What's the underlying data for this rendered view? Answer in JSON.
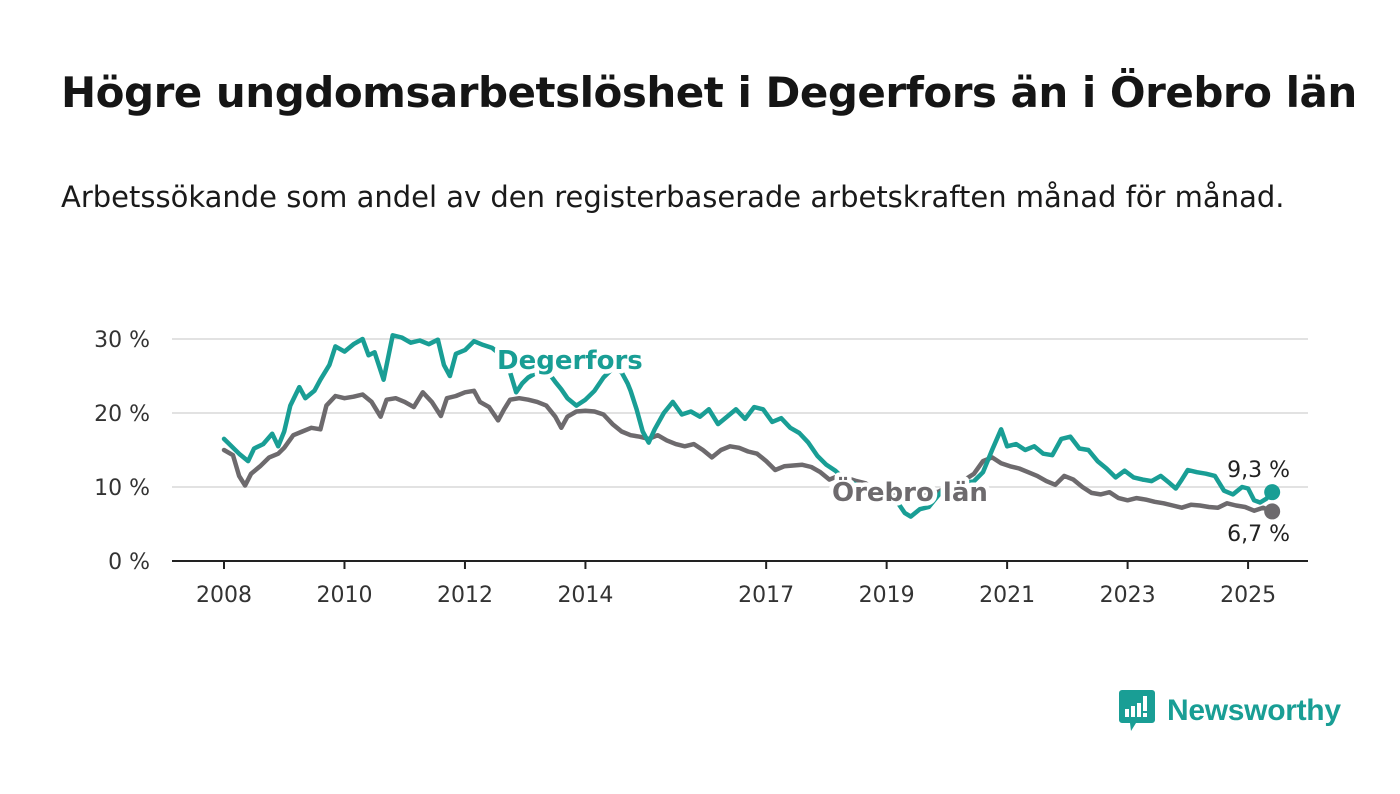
{
  "header": {
    "title": "Högre ungdomsarbetslöshet i Degerfors än i Örebro län",
    "subtitle": "Arbetssökande som andel av den registerbaserade arbetskraften månad för månad."
  },
  "logo": {
    "name": "Newsworthy",
    "color": "#199e95",
    "icon": "bar-chart-speech-bubble-icon"
  },
  "chart_data": {
    "type": "line",
    "title": "Högre ungdomsarbetslöshet i Degerfors än i Örebro län",
    "subtitle": "Arbetssökande som andel av den registerbaserade arbetskraften månad för månad.",
    "xlabel": "",
    "ylabel": "",
    "ylim": [
      0,
      30
    ],
    "xlim": [
      2007.6,
      2025.8
    ],
    "y_ticks": [
      {
        "value": 0,
        "label": "0 %"
      },
      {
        "value": 10,
        "label": "10 %"
      },
      {
        "value": 20,
        "label": "20 %"
      },
      {
        "value": 30,
        "label": "30 %"
      }
    ],
    "x_ticks": [
      {
        "value": 2008,
        "label": "2008"
      },
      {
        "value": 2010,
        "label": "2010"
      },
      {
        "value": 2012,
        "label": "2012"
      },
      {
        "value": 2014,
        "label": "2014"
      },
      {
        "value": 2017,
        "label": "2017"
      },
      {
        "value": 2019,
        "label": "2019"
      },
      {
        "value": 2021,
        "label": "2021"
      },
      {
        "value": 2023,
        "label": "2023"
      },
      {
        "value": 2025,
        "label": "2025"
      }
    ],
    "grid": true,
    "legend": "direct labels on lines",
    "series": [
      {
        "name": "Degerfors",
        "color": "#199e95",
        "end_label": "9,3 %",
        "points": [
          [
            2008.0,
            16.5
          ],
          [
            2008.25,
            14.5
          ],
          [
            2008.4,
            13.5
          ],
          [
            2008.5,
            15.2
          ],
          [
            2008.65,
            15.8
          ],
          [
            2008.8,
            17.2
          ],
          [
            2008.9,
            15.5
          ],
          [
            2009.0,
            17.5
          ],
          [
            2009.1,
            21.0
          ],
          [
            2009.25,
            23.5
          ],
          [
            2009.35,
            22.0
          ],
          [
            2009.5,
            23.0
          ],
          [
            2009.6,
            24.5
          ],
          [
            2009.75,
            26.5
          ],
          [
            2009.85,
            29.0
          ],
          [
            2010.0,
            28.3
          ],
          [
            2010.15,
            29.3
          ],
          [
            2010.3,
            30.0
          ],
          [
            2010.4,
            27.8
          ],
          [
            2010.5,
            28.2
          ],
          [
            2010.65,
            24.5
          ],
          [
            2010.8,
            30.5
          ],
          [
            2010.95,
            30.2
          ],
          [
            2011.1,
            29.5
          ],
          [
            2011.25,
            29.8
          ],
          [
            2011.4,
            29.3
          ],
          [
            2011.55,
            29.9
          ],
          [
            2011.65,
            26.5
          ],
          [
            2011.75,
            25.0
          ],
          [
            2011.85,
            28.0
          ],
          [
            2012.0,
            28.5
          ],
          [
            2012.15,
            29.7
          ],
          [
            2012.3,
            29.2
          ],
          [
            2012.45,
            28.8
          ],
          [
            2012.6,
            27.8
          ],
          [
            2012.75,
            25.5
          ],
          [
            2012.85,
            22.8
          ],
          [
            2012.95,
            24.0
          ],
          [
            2013.05,
            24.8
          ],
          [
            2013.2,
            25.5
          ],
          [
            2013.3,
            26.0
          ],
          [
            2013.4,
            25.3
          ],
          [
            2013.5,
            24.2
          ],
          [
            2013.6,
            23.2
          ],
          [
            2013.7,
            22.0
          ],
          [
            2013.85,
            21.0
          ],
          [
            2014.0,
            21.8
          ],
          [
            2014.15,
            23.0
          ],
          [
            2014.3,
            24.8
          ],
          [
            2014.45,
            26.0
          ],
          [
            2014.6,
            25.5
          ],
          [
            2014.7,
            24.0
          ],
          [
            2014.75,
            23.0
          ],
          [
            2014.85,
            20.5
          ],
          [
            2014.95,
            17.5
          ],
          [
            2015.05,
            16.0
          ],
          [
            2015.15,
            17.8
          ],
          [
            2015.3,
            20.0
          ],
          [
            2015.45,
            21.5
          ],
          [
            2015.6,
            19.8
          ],
          [
            2015.75,
            20.2
          ],
          [
            2015.9,
            19.5
          ],
          [
            2016.05,
            20.5
          ],
          [
            2016.2,
            18.5
          ],
          [
            2016.35,
            19.5
          ],
          [
            2016.5,
            20.5
          ],
          [
            2016.65,
            19.2
          ],
          [
            2016.8,
            20.8
          ],
          [
            2016.95,
            20.5
          ],
          [
            2017.1,
            18.8
          ],
          [
            2017.25,
            19.3
          ],
          [
            2017.4,
            18.0
          ],
          [
            2017.55,
            17.3
          ],
          [
            2017.7,
            16.0
          ],
          [
            2017.85,
            14.2
          ],
          [
            2018.0,
            13.0
          ],
          [
            2018.15,
            12.2
          ],
          [
            2018.3,
            11.0
          ],
          [
            2018.45,
            10.5
          ],
          [
            2018.6,
            10.0
          ],
          [
            2018.75,
            9.4
          ],
          [
            2018.9,
            9.0
          ],
          [
            2019.0,
            9.4
          ],
          [
            2019.15,
            8.3
          ],
          [
            2019.3,
            6.5
          ],
          [
            2019.4,
            6.0
          ],
          [
            2019.55,
            7.0
          ],
          [
            2019.7,
            7.3
          ],
          [
            2019.85,
            8.8
          ],
          [
            2020.0,
            10.2
          ],
          [
            2020.15,
            9.6
          ],
          [
            2020.3,
            10.5
          ],
          [
            2020.45,
            10.8
          ],
          [
            2020.6,
            12.0
          ],
          [
            2020.75,
            15.0
          ],
          [
            2020.9,
            17.8
          ],
          [
            2021.0,
            15.5
          ],
          [
            2021.15,
            15.8
          ],
          [
            2021.3,
            15.0
          ],
          [
            2021.45,
            15.5
          ],
          [
            2021.6,
            14.5
          ],
          [
            2021.75,
            14.3
          ],
          [
            2021.9,
            16.5
          ],
          [
            2022.05,
            16.8
          ],
          [
            2022.2,
            15.2
          ],
          [
            2022.35,
            15.0
          ],
          [
            2022.5,
            13.5
          ],
          [
            2022.65,
            12.5
          ],
          [
            2022.8,
            11.3
          ],
          [
            2022.95,
            12.2
          ],
          [
            2023.1,
            11.3
          ],
          [
            2023.25,
            11.0
          ],
          [
            2023.4,
            10.8
          ],
          [
            2023.55,
            11.5
          ],
          [
            2023.7,
            10.5
          ],
          [
            2023.8,
            9.8
          ],
          [
            2023.9,
            11.0
          ],
          [
            2024.0,
            12.3
          ],
          [
            2024.15,
            12.0
          ],
          [
            2024.3,
            11.8
          ],
          [
            2024.45,
            11.5
          ],
          [
            2024.6,
            9.5
          ],
          [
            2024.75,
            9.0
          ],
          [
            2024.9,
            10.0
          ],
          [
            2025.0,
            9.8
          ],
          [
            2025.1,
            8.2
          ],
          [
            2025.2,
            7.9
          ],
          [
            2025.3,
            8.4
          ],
          [
            2025.4,
            9.3
          ]
        ]
      },
      {
        "name": "Örebro län",
        "color": "#6d6a6d",
        "end_label": "6,7 %",
        "points": [
          [
            2008.0,
            15.0
          ],
          [
            2008.15,
            14.3
          ],
          [
            2008.25,
            11.5
          ],
          [
            2008.35,
            10.2
          ],
          [
            2008.45,
            11.8
          ],
          [
            2008.6,
            12.8
          ],
          [
            2008.75,
            14.0
          ],
          [
            2008.9,
            14.5
          ],
          [
            2009.0,
            15.3
          ],
          [
            2009.15,
            17.0
          ],
          [
            2009.3,
            17.5
          ],
          [
            2009.45,
            18.0
          ],
          [
            2009.6,
            17.8
          ],
          [
            2009.7,
            21.0
          ],
          [
            2009.85,
            22.3
          ],
          [
            2010.0,
            22.0
          ],
          [
            2010.15,
            22.2
          ],
          [
            2010.3,
            22.5
          ],
          [
            2010.45,
            21.5
          ],
          [
            2010.6,
            19.5
          ],
          [
            2010.7,
            21.8
          ],
          [
            2010.85,
            22.0
          ],
          [
            2011.0,
            21.5
          ],
          [
            2011.15,
            20.8
          ],
          [
            2011.3,
            22.8
          ],
          [
            2011.45,
            21.5
          ],
          [
            2011.6,
            19.6
          ],
          [
            2011.7,
            22.0
          ],
          [
            2011.85,
            22.3
          ],
          [
            2012.0,
            22.8
          ],
          [
            2012.15,
            23.0
          ],
          [
            2012.25,
            21.5
          ],
          [
            2012.4,
            20.8
          ],
          [
            2012.55,
            19.0
          ],
          [
            2012.65,
            20.5
          ],
          [
            2012.75,
            21.8
          ],
          [
            2012.9,
            22.0
          ],
          [
            2013.05,
            21.8
          ],
          [
            2013.2,
            21.5
          ],
          [
            2013.35,
            21.0
          ],
          [
            2013.5,
            19.5
          ],
          [
            2013.6,
            18.0
          ],
          [
            2013.7,
            19.5
          ],
          [
            2013.85,
            20.2
          ],
          [
            2014.0,
            20.3
          ],
          [
            2014.15,
            20.2
          ],
          [
            2014.3,
            19.8
          ],
          [
            2014.45,
            18.5
          ],
          [
            2014.6,
            17.5
          ],
          [
            2014.75,
            17.0
          ],
          [
            2014.9,
            16.8
          ],
          [
            2015.05,
            16.5
          ],
          [
            2015.2,
            17.0
          ],
          [
            2015.35,
            16.3
          ],
          [
            2015.5,
            15.8
          ],
          [
            2015.65,
            15.5
          ],
          [
            2015.8,
            15.8
          ],
          [
            2015.95,
            15.0
          ],
          [
            2016.1,
            14.0
          ],
          [
            2016.25,
            15.0
          ],
          [
            2016.4,
            15.5
          ],
          [
            2016.55,
            15.3
          ],
          [
            2016.7,
            14.8
          ],
          [
            2016.85,
            14.5
          ],
          [
            2017.0,
            13.5
          ],
          [
            2017.15,
            12.3
          ],
          [
            2017.3,
            12.8
          ],
          [
            2017.45,
            12.9
          ],
          [
            2017.6,
            13.0
          ],
          [
            2017.75,
            12.7
          ],
          [
            2017.9,
            12.0
          ],
          [
            2018.05,
            11.0
          ],
          [
            2018.2,
            11.5
          ],
          [
            2018.35,
            11.2
          ],
          [
            2018.5,
            10.8
          ],
          [
            2018.65,
            10.5
          ],
          [
            2018.8,
            9.5
          ],
          [
            2018.95,
            9.8
          ],
          [
            2019.1,
            9.3
          ],
          [
            2019.25,
            9.2
          ],
          [
            2019.4,
            8.8
          ],
          [
            2019.55,
            9.0
          ],
          [
            2019.7,
            9.5
          ],
          [
            2019.85,
            9.3
          ],
          [
            2020.0,
            10.0
          ],
          [
            2020.15,
            10.5
          ],
          [
            2020.3,
            11.0
          ],
          [
            2020.45,
            11.8
          ],
          [
            2020.6,
            13.5
          ],
          [
            2020.75,
            14.0
          ],
          [
            2020.9,
            13.2
          ],
          [
            2021.05,
            12.8
          ],
          [
            2021.2,
            12.5
          ],
          [
            2021.35,
            12.0
          ],
          [
            2021.5,
            11.5
          ],
          [
            2021.65,
            10.8
          ],
          [
            2021.8,
            10.3
          ],
          [
            2021.95,
            11.5
          ],
          [
            2022.1,
            11.0
          ],
          [
            2022.25,
            10.0
          ],
          [
            2022.4,
            9.2
          ],
          [
            2022.55,
            9.0
          ],
          [
            2022.7,
            9.3
          ],
          [
            2022.85,
            8.5
          ],
          [
            2023.0,
            8.2
          ],
          [
            2023.15,
            8.5
          ],
          [
            2023.3,
            8.3
          ],
          [
            2023.45,
            8.0
          ],
          [
            2023.6,
            7.8
          ],
          [
            2023.75,
            7.5
          ],
          [
            2023.9,
            7.2
          ],
          [
            2024.05,
            7.6
          ],
          [
            2024.2,
            7.5
          ],
          [
            2024.35,
            7.3
          ],
          [
            2024.5,
            7.2
          ],
          [
            2024.65,
            7.8
          ],
          [
            2024.8,
            7.5
          ],
          [
            2024.95,
            7.3
          ],
          [
            2025.1,
            6.8
          ],
          [
            2025.25,
            7.2
          ],
          [
            2025.4,
            6.7
          ]
        ]
      }
    ]
  }
}
